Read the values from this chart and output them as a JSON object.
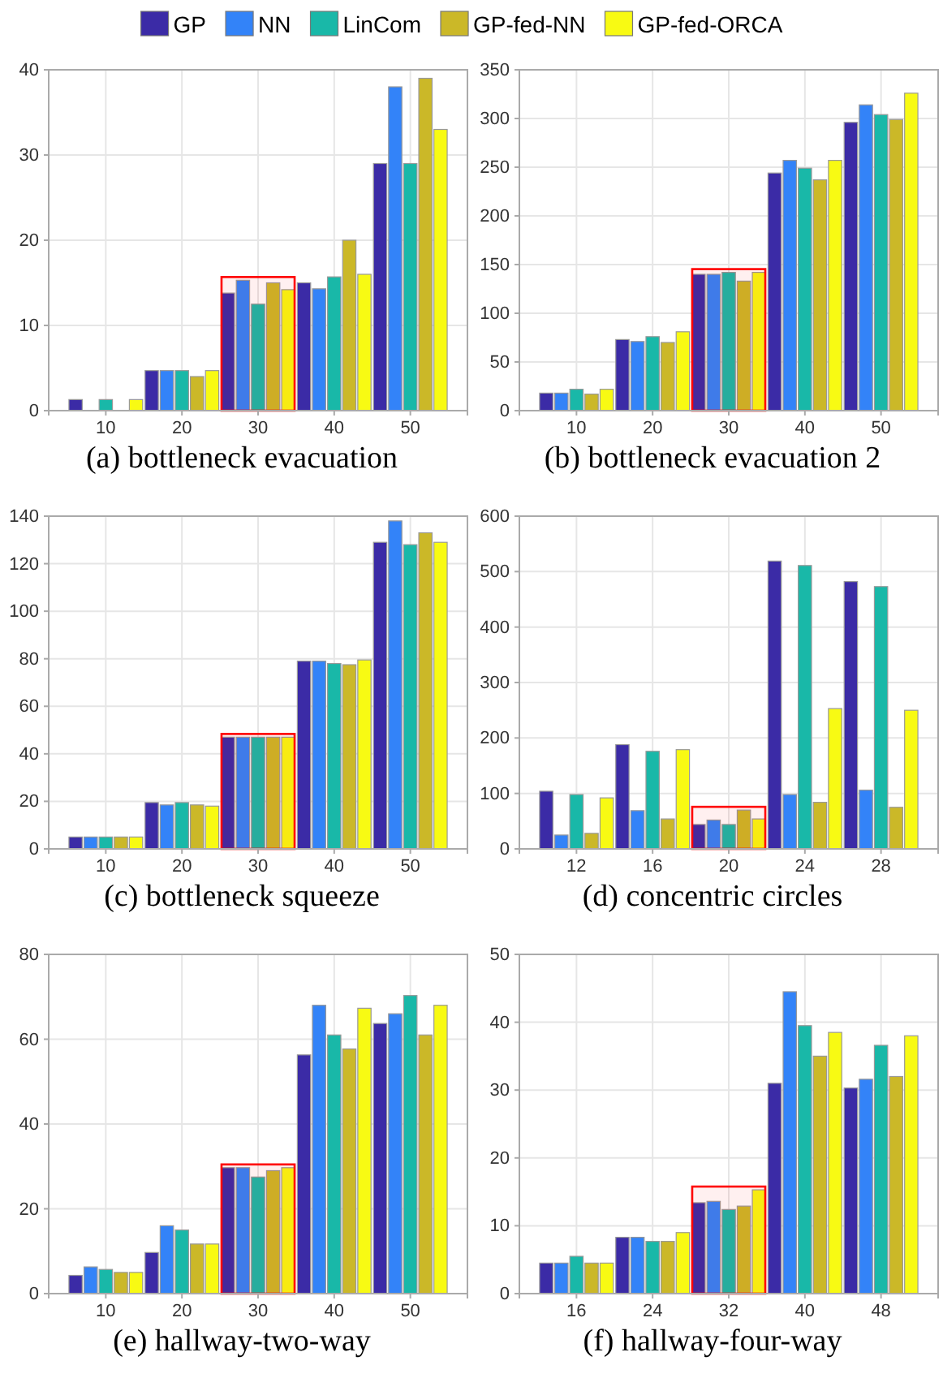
{
  "chart_data": [
    {
      "type": "bar",
      "title": "(a) bottleneck evacuation",
      "categories": [
        "10",
        "20",
        "30",
        "40",
        "50"
      ],
      "ylim": [
        0,
        40
      ],
      "yticks": [
        0,
        10,
        20,
        30,
        40
      ],
      "grid": true,
      "legend": "top",
      "bands": [
        {
          "axis": "x",
          "from": "30",
          "to": "30",
          "color": "#ff0000"
        }
      ],
      "series": [
        {
          "name": "GP",
          "color": "#3b2ba6",
          "values": [
            1.3,
            4.7,
            13.8,
            15,
            29
          ]
        },
        {
          "name": "NN",
          "color": "#3383f8",
          "values": [
            0,
            4.7,
            15.3,
            14.3,
            38
          ]
        },
        {
          "name": "LinCom",
          "color": "#19b8a8",
          "values": [
            1.3,
            4.7,
            12.5,
            15.7,
            29
          ]
        },
        {
          "name": "GP-fed-NN",
          "color": "#cbb828",
          "values": [
            0,
            4,
            15,
            20,
            39
          ]
        },
        {
          "name": "GP-fed-ORCA",
          "color": "#f8fa13",
          "values": [
            1.3,
            4.7,
            14.2,
            16,
            33
          ]
        }
      ]
    },
    {
      "type": "bar",
      "title": "(b) bottleneck evacuation 2",
      "categories": [
        "10",
        "20",
        "30",
        "40",
        "50"
      ],
      "ylim": [
        0,
        350
      ],
      "yticks": [
        0,
        50,
        100,
        150,
        200,
        250,
        300,
        350
      ],
      "grid": true,
      "bands": [
        {
          "axis": "x",
          "from": "30",
          "to": "30",
          "color": "#ff0000"
        }
      ],
      "series": [
        {
          "color": "#3b2ba6",
          "values": [
            18,
            73,
            140,
            244,
            296
          ]
        },
        {
          "color": "#3383f8",
          "values": [
            18,
            71,
            140,
            257,
            314
          ]
        },
        {
          "color": "#19b8a8",
          "values": [
            22,
            76,
            142,
            249,
            304
          ]
        },
        {
          "color": "#cbb828",
          "values": [
            17,
            70,
            133,
            237,
            299
          ]
        },
        {
          "color": "#f8fa13",
          "values": [
            22,
            81,
            142,
            257,
            326
          ]
        }
      ]
    },
    {
      "type": "bar",
      "title": "(c) bottleneck squeeze",
      "categories": [
        "10",
        "20",
        "30",
        "40",
        "50"
      ],
      "ylim": [
        0,
        140
      ],
      "yticks": [
        0,
        20,
        40,
        60,
        80,
        100,
        120,
        140
      ],
      "grid": true,
      "bands": [
        {
          "axis": "x",
          "from": "30",
          "to": "30",
          "color": "#ff0000"
        }
      ],
      "series": [
        {
          "color": "#3b2ba6",
          "values": [
            5,
            19.5,
            47,
            79,
            129
          ]
        },
        {
          "color": "#3383f8",
          "values": [
            5,
            18.5,
            47,
            79,
            138
          ]
        },
        {
          "color": "#19b8a8",
          "values": [
            5,
            19.5,
            47,
            78,
            128
          ]
        },
        {
          "color": "#cbb828",
          "values": [
            5,
            18.5,
            47,
            77.5,
            133
          ]
        },
        {
          "color": "#f8fa13",
          "values": [
            5,
            18,
            47,
            79.5,
            129
          ]
        }
      ]
    },
    {
      "type": "bar",
      "title": "(d) concentric circles",
      "categories": [
        "12",
        "16",
        "20",
        "24",
        "28"
      ],
      "ylim": [
        0,
        600
      ],
      "yticks": [
        0,
        100,
        200,
        300,
        400,
        500,
        600
      ],
      "grid": true,
      "bands": [
        {
          "axis": "x",
          "from": "20",
          "to": "20",
          "color": "#ff0000"
        }
      ],
      "series": [
        {
          "color": "#3b2ba6",
          "values": [
            104,
            188,
            44,
            519,
            482
          ]
        },
        {
          "color": "#3383f8",
          "values": [
            25,
            69,
            52,
            98,
            106
          ]
        },
        {
          "color": "#19b8a8",
          "values": [
            98,
            176,
            44,
            511,
            473
          ]
        },
        {
          "color": "#cbb828",
          "values": [
            28,
            54,
            70,
            84,
            75
          ]
        },
        {
          "color": "#f8fa13",
          "values": [
            92,
            179,
            54,
            253,
            250
          ]
        }
      ]
    },
    {
      "type": "bar",
      "title": "(e) hallway-two-way",
      "categories": [
        "10",
        "20",
        "30",
        "40",
        "50"
      ],
      "ylim": [
        0,
        80
      ],
      "yticks": [
        0,
        20,
        40,
        60,
        80
      ],
      "grid": true,
      "bands": [
        {
          "axis": "x",
          "from": "30",
          "to": "30",
          "color": "#ff0000"
        }
      ],
      "series": [
        {
          "color": "#3b2ba6",
          "values": [
            4.3,
            9.7,
            29.7,
            56.3,
            63.7
          ]
        },
        {
          "color": "#3383f8",
          "values": [
            6.3,
            16,
            29.7,
            68,
            66
          ]
        },
        {
          "color": "#19b8a8",
          "values": [
            5.7,
            15,
            27.5,
            61,
            70.3
          ]
        },
        {
          "color": "#cbb828",
          "values": [
            5,
            11.7,
            29,
            57.7,
            61
          ]
        },
        {
          "color": "#f8fa13",
          "values": [
            5,
            11.7,
            29.7,
            67.3,
            68
          ]
        }
      ]
    },
    {
      "type": "bar",
      "title": "(f) hallway-four-way",
      "categories": [
        "16",
        "24",
        "32",
        "40",
        "48"
      ],
      "ylim": [
        0,
        50
      ],
      "yticks": [
        0,
        10,
        20,
        30,
        40,
        50
      ],
      "grid": true,
      "bands": [
        {
          "axis": "x",
          "from": "32",
          "to": "32",
          "color": "#ff0000"
        }
      ],
      "series": [
        {
          "color": "#3b2ba6",
          "values": [
            4.5,
            8.3,
            13.4,
            31,
            30.3
          ]
        },
        {
          "color": "#3383f8",
          "values": [
            4.5,
            8.3,
            13.6,
            44.5,
            31.6
          ]
        },
        {
          "color": "#19b8a8",
          "values": [
            5.5,
            7.7,
            12.4,
            39.5,
            36.6
          ]
        },
        {
          "color": "#cbb828",
          "values": [
            4.5,
            7.7,
            12.9,
            35,
            32
          ]
        },
        {
          "color": "#f8fa13",
          "values": [
            4.5,
            9,
            15.3,
            38.5,
            38
          ]
        }
      ]
    }
  ]
}
